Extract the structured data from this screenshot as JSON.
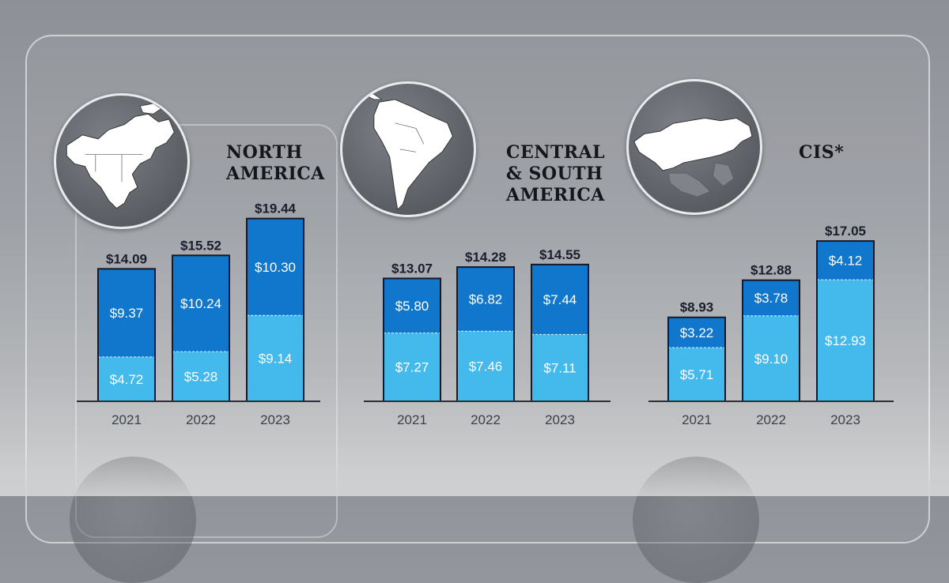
{
  "colors": {
    "upper_segment": "#1177cc",
    "lower_segment": "#44b9ec",
    "bar_outline": "#141a2c",
    "axis": "#2c2f36"
  },
  "regions": [
    {
      "title_line1": "NORTH",
      "title_line2": "AMERICA",
      "title_line3": "",
      "map_icon": "north-america-globe-icon"
    },
    {
      "title_line1": "CENTRAL",
      "title_line2": "& SOUTH",
      "title_line3": "AMERICA",
      "map_icon": "south-america-globe-icon"
    },
    {
      "title_line1": "CIS*",
      "title_line2": "",
      "title_line3": "",
      "map_icon": "cis-russia-globe-icon"
    }
  ],
  "chart_data": [
    {
      "type": "bar",
      "stacked": true,
      "categories": [
        "2021",
        "2022",
        "2023"
      ],
      "series": [
        {
          "values": [
            4.72,
            5.28,
            9.14
          ],
          "labels": [
            "$4.72",
            "$5.28",
            "$9.14"
          ]
        },
        {
          "values": [
            9.37,
            10.24,
            10.3
          ],
          "labels": [
            "$9.37",
            "$10.24",
            "$10.30"
          ]
        }
      ],
      "totals": [
        14.09,
        15.52,
        19.44
      ],
      "total_labels": [
        "$14.09",
        "$15.52",
        "$19.44"
      ],
      "ylim": [
        0,
        20
      ]
    },
    {
      "type": "bar",
      "stacked": true,
      "categories": [
        "2021",
        "2022",
        "2023"
      ],
      "series": [
        {
          "values": [
            7.27,
            7.46,
            7.11
          ],
          "labels": [
            "$7.27",
            "$7.46",
            "$7.11"
          ]
        },
        {
          "values": [
            5.8,
            6.82,
            7.44
          ],
          "labels": [
            "$5.80",
            "$6.82",
            "$7.44"
          ]
        }
      ],
      "totals": [
        13.07,
        14.28,
        14.55
      ],
      "total_labels": [
        "$13.07",
        "$14.28",
        "$14.55"
      ],
      "ylim": [
        0,
        20
      ]
    },
    {
      "type": "bar",
      "stacked": true,
      "categories": [
        "2021",
        "2022",
        "2023"
      ],
      "series": [
        {
          "values": [
            5.71,
            9.1,
            12.93
          ],
          "labels": [
            "$5.71",
            "$9.10",
            "$12.93"
          ]
        },
        {
          "values": [
            3.22,
            3.78,
            4.12
          ],
          "labels": [
            "$3.22",
            "$3.78",
            "$4.12"
          ]
        }
      ],
      "totals": [
        8.93,
        12.88,
        17.05
      ],
      "total_labels": [
        "$8.93",
        "$12.88",
        "$17.05"
      ],
      "ylim": [
        0,
        20
      ]
    }
  ]
}
